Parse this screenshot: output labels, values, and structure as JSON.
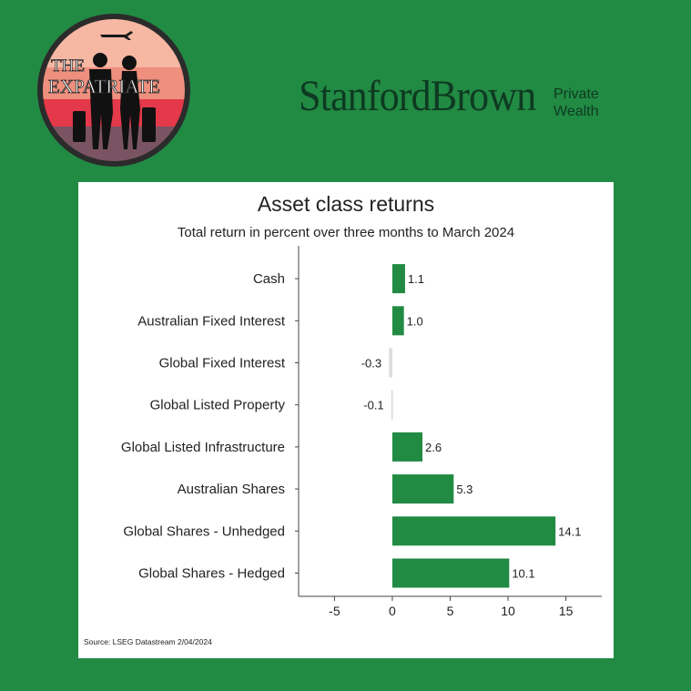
{
  "brand": {
    "badge_line1": "THE",
    "badge_line2": "EXPATRIATE",
    "name": "StanfordBrown",
    "sub_line1": "Private",
    "sub_line2": "Wealth"
  },
  "colors": {
    "background": "#218a43",
    "bar_positive": "#218a43",
    "bar_negative": "#dddddd",
    "brand_text": "#0e3a22"
  },
  "chart_data": {
    "type": "bar",
    "orientation": "horizontal",
    "title": "Asset class returns",
    "subtitle": "Total return in percent over three months to March 2024",
    "categories": [
      "Cash",
      "Australian Fixed Interest",
      "Global Fixed Interest",
      "Global Listed Property",
      "Global Listed Infrastructure",
      "Australian Shares",
      "Global Shares - Unhedged",
      "Global Shares - Hedged"
    ],
    "values": [
      1.1,
      1.0,
      -0.3,
      -0.1,
      2.6,
      5.3,
      14.1,
      10.1
    ],
    "value_labels": [
      "1.1",
      "1.0",
      "-0.3",
      "-0.1",
      "2.6",
      "5.3",
      "14.1",
      "10.1"
    ],
    "xlim": [
      -8.1,
      18.1
    ],
    "xticks": [
      -5,
      0,
      5,
      10,
      15
    ],
    "xtick_labels": [
      "-5",
      "0",
      "5",
      "10",
      "15"
    ],
    "grid": false,
    "legend": "none",
    "source": "Source: LSEG Datastream 2/04/2024"
  }
}
